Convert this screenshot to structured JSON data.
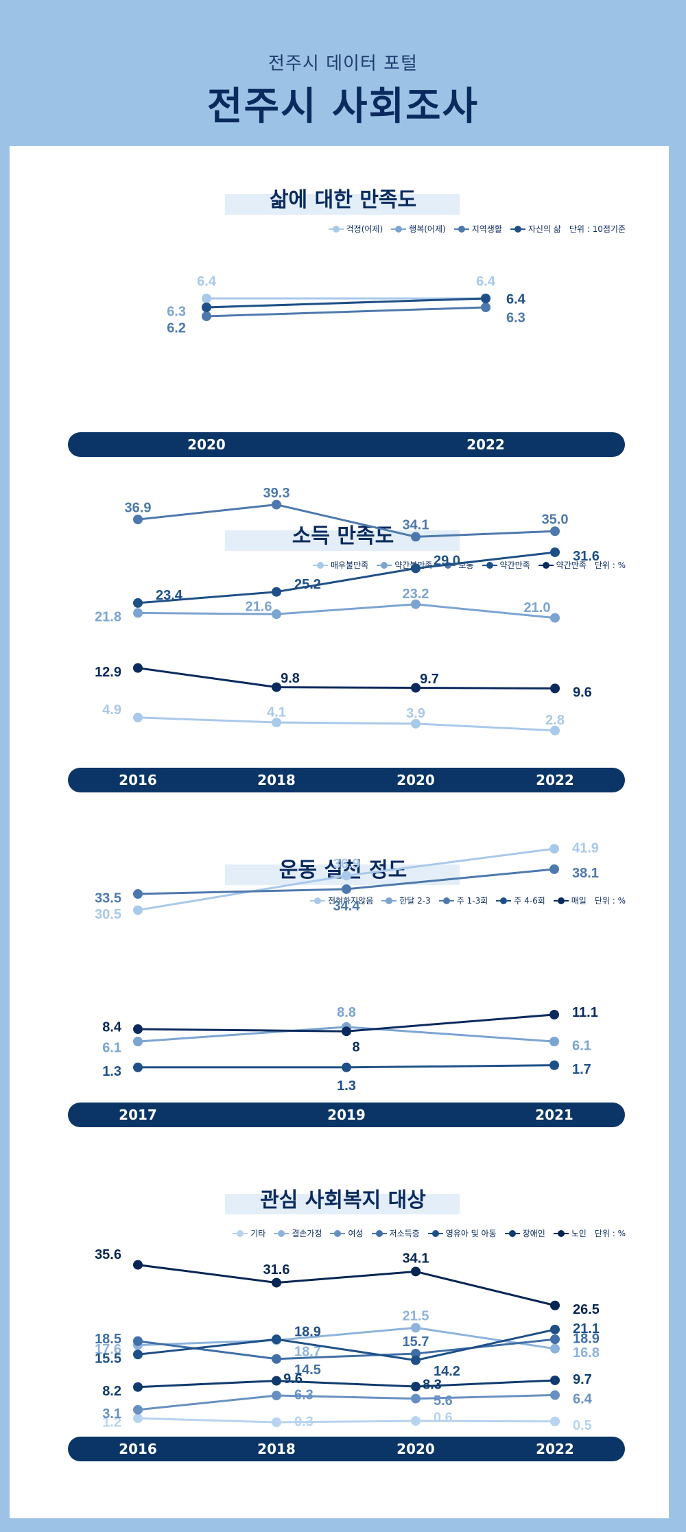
{
  "header": {
    "subtitle": "전주시 데이터 포털",
    "title": "전주시 사회조사"
  },
  "chart_data": [
    {
      "type": "line",
      "title": "삶에 대한 만족도",
      "unit": "단위 : 10점기준",
      "x": [
        "2020",
        "2022"
      ],
      "series": [
        {
          "name": "걱정(어제)",
          "values": [
            6.4,
            6.4
          ],
          "color": "#a9c9ea",
          "labels": [
            "6.4",
            "6.4"
          ]
        },
        {
          "name": "행복(어제)",
          "values": [
            6.3,
            6.4
          ],
          "color": "#7ba4d1",
          "labels": [
            "6.3",
            "6.4"
          ]
        },
        {
          "name": "지역생활",
          "values": [
            6.2,
            6.3
          ],
          "color": "#4d78ac",
          "labels": [
            "6.2",
            "6.3"
          ]
        },
        {
          "name": "자신의 삶",
          "values": [
            6.3,
            6.4
          ],
          "color": "#1e4f86",
          "labels": [
            "6.3",
            "6.4"
          ]
        }
      ]
    },
    {
      "type": "line",
      "title": "소득 만족도",
      "unit": "단위 : %",
      "x": [
        "2016",
        "2018",
        "2020",
        "2022"
      ],
      "series": [
        {
          "name": "매우불만족",
          "values": [
            4.9,
            4.1,
            3.9,
            2.8
          ],
          "color": "#a9c9ea",
          "labels": [
            "4.9",
            "4.1",
            "3.9",
            "2.8"
          ]
        },
        {
          "name": "약간불만족",
          "values": [
            21.8,
            21.6,
            23.2,
            21.0
          ],
          "color": "#7ba4d1",
          "labels": [
            "21.8",
            "21.6",
            "23.2",
            "21.0"
          ]
        },
        {
          "name": "보통",
          "values": [
            36.9,
            39.3,
            34.1,
            35.0
          ],
          "color": "#4d78ac",
          "labels": [
            "36.9",
            "39.3",
            "34.1",
            "35.0"
          ]
        },
        {
          "name": "약간만족",
          "values": [
            23.4,
            25.2,
            29.0,
            31.6
          ],
          "color": "#1e4f86",
          "labels": [
            "23.4",
            "25.2",
            "29.0",
            "31.6"
          ]
        },
        {
          "name": "약간만족",
          "values": [
            12.9,
            9.8,
            9.7,
            9.6
          ],
          "color": "#0a2a5e",
          "labels": [
            "12.9",
            "9.8",
            "9.7",
            "9.6"
          ]
        }
      ]
    },
    {
      "type": "line",
      "title": "운동 실천 정도",
      "unit": "단위 : %",
      "x": [
        "2017",
        "2019",
        "2021"
      ],
      "series": [
        {
          "name": "전혀하지않음",
          "values": [
            30.5,
            36.9,
            41.9
          ],
          "color": "#a9c9ea",
          "labels": [
            "30.5",
            "36.9",
            "41.9"
          ]
        },
        {
          "name": "한달 2-3",
          "values": [
            6.1,
            8.8,
            6.1
          ],
          "color": "#7ba4d1",
          "labels": [
            "6.1",
            "8.8",
            "6.1"
          ]
        },
        {
          "name": "주 1-3회",
          "values": [
            33.5,
            34.4,
            38.1
          ],
          "color": "#4d78ac",
          "labels": [
            "33.5",
            "34.4",
            "38.1"
          ]
        },
        {
          "name": "주 4-6회",
          "values": [
            1.3,
            1.3,
            1.7
          ],
          "color": "#1e4f86",
          "labels": [
            "1.3",
            "1.3",
            "1.7"
          ]
        },
        {
          "name": "매일",
          "values": [
            8.4,
            8,
            11.1
          ],
          "color": "#0a2a5e",
          "labels": [
            "8.4",
            "8",
            "11.1"
          ]
        }
      ]
    },
    {
      "type": "line",
      "title": "관심 사회복지 대상",
      "unit": "단위 : %",
      "x": [
        "2016",
        "2018",
        "2020",
        "2022"
      ],
      "series": [
        {
          "name": "기타",
          "values": [
            1.2,
            0.3,
            0.6,
            0.5
          ],
          "color": "#b7d3ef",
          "labels": [
            "1.2",
            "0.3",
            "0.6",
            "0.5"
          ]
        },
        {
          "name": "결손가정",
          "values": [
            17.6,
            18.7,
            21.5,
            16.8
          ],
          "color": "#8db3dc",
          "labels": [
            "17.6",
            "18.7",
            "21.5",
            "16.8"
          ]
        },
        {
          "name": "여성",
          "values": [
            3.1,
            6.3,
            5.6,
            6.4
          ],
          "color": "#6790c2",
          "labels": [
            "3.1",
            "6.3",
            "5.6",
            "6.4"
          ]
        },
        {
          "name": "저소득층",
          "values": [
            18.5,
            14.5,
            15.7,
            18.9
          ],
          "color": "#3f6fa6",
          "labels": [
            "18.5",
            "14.5",
            "15.7",
            "18.9"
          ]
        },
        {
          "name": "영유아 및 아동",
          "values": [
            15.5,
            18.9,
            14.2,
            21.1
          ],
          "color": "#1e4f86",
          "labels": [
            "15.5",
            "18.9",
            "14.2",
            "21.1"
          ]
        },
        {
          "name": "장애인",
          "values": [
            8.2,
            9.6,
            8.3,
            9.7
          ],
          "color": "#0f3a6e",
          "labels": [
            "8.2",
            "9.6",
            "8.3",
            "9.7"
          ]
        },
        {
          "name": "노인",
          "values": [
            35.6,
            31.6,
            34.1,
            26.5
          ],
          "color": "#062552",
          "labels": [
            "35.6",
            "31.6",
            "34.1",
            "26.5"
          ]
        }
      ]
    }
  ]
}
